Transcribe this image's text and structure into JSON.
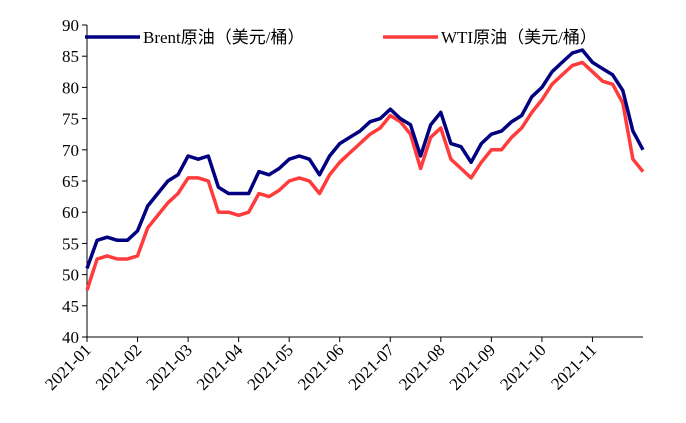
{
  "chart_data": {
    "type": "line",
    "categories": [
      "2021-01",
      null,
      null,
      null,
      null,
      "2021-02",
      null,
      null,
      null,
      null,
      "2021-03",
      null,
      null,
      null,
      null,
      "2021-04",
      null,
      null,
      null,
      null,
      "2021-05",
      null,
      null,
      null,
      null,
      "2021-06",
      null,
      null,
      null,
      null,
      "2021-07",
      null,
      null,
      null,
      null,
      "2021-08",
      null,
      null,
      null,
      null,
      "2021-09",
      null,
      null,
      null,
      null,
      "2021-10",
      null,
      null,
      null,
      null,
      "2021-11",
      null,
      null,
      null,
      null,
      null
    ],
    "series": [
      {
        "name": "Brent原油（美元/桶）",
        "color": "#000080",
        "values": [
          51,
          55.5,
          56,
          55.5,
          55.5,
          57,
          61,
          63,
          65,
          66,
          69,
          68.5,
          69,
          64,
          63,
          63,
          63,
          66.5,
          66,
          67,
          68.5,
          69,
          68.5,
          66,
          69,
          71,
          72,
          73,
          74.5,
          75,
          76.5,
          75,
          74,
          69,
          74,
          76,
          71,
          70.5,
          68,
          71,
          72.5,
          73,
          74.5,
          75.5,
          78.5,
          80,
          82.5,
          84,
          85.5,
          86,
          84,
          83,
          82,
          79.5,
          73,
          70
        ]
      },
      {
        "name": "WTI原油（美元/桶）",
        "color": "#ff3b3b",
        "values": [
          47.5,
          52.5,
          53,
          52.5,
          52.5,
          53,
          57.5,
          59.5,
          61.5,
          63,
          65.5,
          65.5,
          65,
          60,
          60,
          59.5,
          60,
          63,
          62.5,
          63.5,
          65,
          65.5,
          65,
          63,
          66,
          68,
          69.5,
          71,
          72.5,
          73.5,
          75.5,
          74.5,
          72.5,
          67,
          72,
          73.5,
          68.5,
          67,
          65.5,
          68,
          70,
          70,
          72,
          73.5,
          76,
          78,
          80.5,
          82,
          83.5,
          84,
          82.5,
          81,
          80.5,
          77.5,
          68.5,
          66.5
        ]
      }
    ],
    "ylim": [
      40,
      90
    ],
    "yticks": [
      40,
      45,
      50,
      55,
      60,
      65,
      70,
      75,
      80,
      85,
      90
    ],
    "grid": false,
    "legend": "top"
  }
}
